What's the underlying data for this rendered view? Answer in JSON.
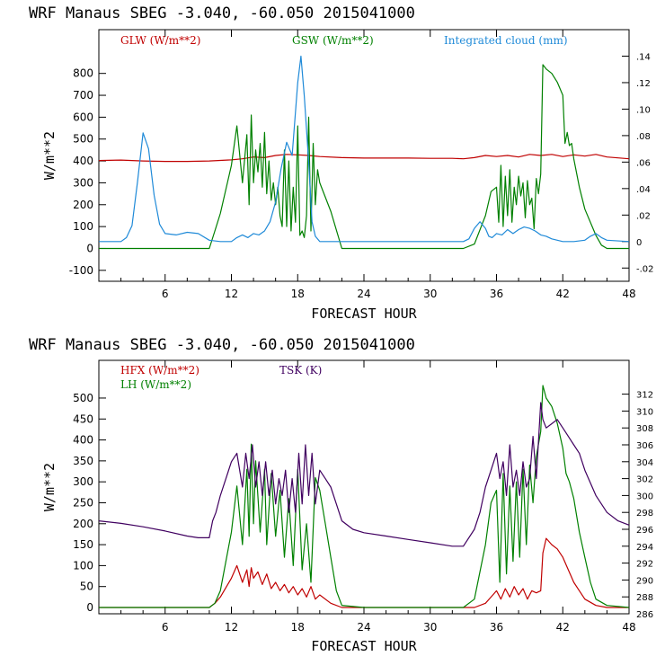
{
  "chart_data": [
    {
      "type": "line",
      "title": "WRF   Manaus SBEG    -3.040, -60.050  2015041000",
      "xlabel": "FORECAST HOUR",
      "ylabel": "W/m**2",
      "xlim": [
        0,
        48
      ],
      "ylim": [
        -150,
        1000
      ],
      "y2lim": [
        -0.03,
        0.16
      ],
      "x_ticks": [
        6,
        12,
        18,
        24,
        30,
        36,
        42,
        48
      ],
      "y_ticks": [
        -100,
        0,
        100,
        200,
        300,
        400,
        500,
        600,
        700,
        800
      ],
      "y2_ticks": [
        -0.02,
        0,
        0.02,
        0.04,
        0.06,
        0.08,
        0.1,
        0.12,
        0.14
      ],
      "y2_tick_labels": [
        "-.02",
        "0",
        ".02",
        ".04",
        ".06",
        ".08",
        ".10",
        ".12",
        ".14"
      ],
      "legend": [
        {
          "label": "GLW (W/m**2)",
          "color": "#c00000"
        },
        {
          "label": "GSW (W/m**2)",
          "color": "#008000"
        },
        {
          "label": "Integrated cloud (mm)",
          "color": "#1f8ad8"
        }
      ],
      "series": [
        {
          "name": "GLW",
          "color": "#c00000",
          "axis": "left",
          "x": [
            0,
            2,
            4,
            6,
            8,
            10,
            12,
            13,
            14,
            15,
            16,
            17,
            18,
            19,
            20,
            22,
            24,
            26,
            28,
            30,
            32,
            33,
            34,
            35,
            36,
            37,
            38,
            39,
            40,
            41,
            42,
            43,
            44,
            45,
            46,
            48
          ],
          "y": [
            402,
            404,
            400,
            398,
            398,
            400,
            405,
            410,
            418,
            415,
            425,
            430,
            428,
            425,
            420,
            415,
            413,
            413,
            413,
            412,
            412,
            410,
            415,
            425,
            420,
            425,
            418,
            430,
            425,
            430,
            420,
            428,
            422,
            430,
            418,
            410
          ]
        },
        {
          "name": "GSW",
          "color": "#008000",
          "axis": "left",
          "x": [
            0,
            6,
            10,
            10.5,
            11,
            12,
            12.5,
            13,
            13.4,
            13.6,
            13.8,
            14,
            14.2,
            14.4,
            14.6,
            14.8,
            15,
            15.2,
            15.4,
            15.6,
            15.8,
            16,
            16.2,
            16.4,
            16.6,
            16.8,
            17,
            17.2,
            17.4,
            17.6,
            17.8,
            18,
            18.2,
            18.4,
            18.6,
            18.8,
            19,
            19.2,
            19.4,
            19.6,
            19.8,
            20,
            21,
            22,
            24,
            33,
            34,
            35,
            35.5,
            36,
            36.2,
            36.4,
            36.6,
            36.8,
            37,
            37.2,
            37.4,
            37.6,
            37.8,
            38,
            38.2,
            38.4,
            38.6,
            38.8,
            39,
            39.2,
            39.4,
            39.6,
            39.8,
            40,
            40.2,
            40.5,
            41,
            41.5,
            42,
            42.2,
            42.4,
            42.6,
            42.8,
            43,
            43.5,
            44,
            45,
            45.5,
            46,
            48
          ],
          "y": [
            0,
            0,
            0,
            80,
            160,
            380,
            560,
            300,
            520,
            200,
            610,
            300,
            450,
            350,
            480,
            280,
            530,
            250,
            400,
            220,
            300,
            200,
            280,
            150,
            100,
            450,
            100,
            400,
            80,
            280,
            120,
            560,
            60,
            80,
            50,
            150,
            600,
            80,
            480,
            200,
            360,
            300,
            170,
            0,
            0,
            0,
            20,
            150,
            260,
            280,
            120,
            380,
            100,
            330,
            150,
            360,
            120,
            280,
            200,
            330,
            240,
            300,
            140,
            310,
            200,
            230,
            90,
            320,
            250,
            340,
            840,
            820,
            800,
            760,
            700,
            480,
            530,
            470,
            480,
            410,
            280,
            180,
            60,
            15,
            0,
            0
          ]
        },
        {
          "name": "Integrated cloud",
          "color": "#1f8ad8",
          "axis": "right",
          "x": [
            0,
            1,
            2,
            2.5,
            3,
            3.5,
            4,
            4.5,
            5,
            5.5,
            6,
            7,
            8,
            9,
            10,
            11,
            12,
            12.5,
            13,
            13.5,
            14,
            14.5,
            15,
            15.5,
            16,
            16.5,
            17,
            17.5,
            18,
            18.3,
            18.6,
            19,
            19.3,
            19.6,
            20,
            22,
            24,
            30,
            33,
            33.5,
            34,
            34.5,
            35,
            35.3,
            35.6,
            36,
            36.5,
            37,
            37.5,
            38,
            38.5,
            39,
            39.5,
            40,
            40.5,
            41,
            42,
            43,
            44,
            44.5,
            45,
            45.5,
            46,
            48
          ],
          "y": [
            0,
            0,
            0,
            0.003,
            0.012,
            0.045,
            0.082,
            0.07,
            0.035,
            0.013,
            0.006,
            0.005,
            0.007,
            0.006,
            0.001,
            0,
            0,
            0.003,
            0.005,
            0.003,
            0.006,
            0.005,
            0.008,
            0.015,
            0.03,
            0.055,
            0.075,
            0.065,
            0.12,
            0.14,
            0.11,
            0.06,
            0.015,
            0.004,
            0,
            0,
            0,
            0,
            0,
            0.002,
            0.01,
            0.015,
            0.01,
            0.004,
            0.003,
            0.006,
            0.005,
            0.009,
            0.006,
            0.009,
            0.011,
            0.01,
            0.008,
            0.005,
            0.004,
            0.002,
            0,
            0,
            0.001,
            0.004,
            0.006,
            0.003,
            0.001,
            0
          ]
        }
      ]
    },
    {
      "type": "line",
      "title": "WRF   Manaus SBEG    -3.040, -60.050  2015041000",
      "xlabel": "FORECAST HOUR",
      "ylabel": "W/m**2",
      "xlim": [
        0,
        48
      ],
      "ylim": [
        -15,
        590
      ],
      "y2lim": [
        286,
        316
      ],
      "x_ticks": [
        6,
        12,
        18,
        24,
        30,
        36,
        42,
        48
      ],
      "y_ticks": [
        0,
        50,
        100,
        150,
        200,
        250,
        300,
        350,
        400,
        450,
        500
      ],
      "y2_ticks": [
        286,
        288,
        290,
        292,
        294,
        296,
        298,
        300,
        302,
        304,
        306,
        308,
        310,
        312
      ],
      "legend": [
        {
          "label": "HFX (W/m**2)",
          "color": "#c00000"
        },
        {
          "label": "LH  (W/m**2)",
          "color": "#008000"
        },
        {
          "label": "TSK (K)",
          "color": "#400060"
        }
      ],
      "series": [
        {
          "name": "HFX",
          "color": "#c00000",
          "axis": "left",
          "x": [
            0,
            8,
            10,
            10.5,
            11,
            12,
            12.5,
            13,
            13.4,
            13.6,
            13.8,
            14,
            14.4,
            14.8,
            15.2,
            15.6,
            16,
            16.4,
            16.8,
            17.2,
            17.6,
            18,
            18.4,
            18.8,
            19.2,
            19.6,
            20,
            21,
            22,
            24,
            33,
            34,
            35,
            35.5,
            36,
            36.4,
            36.8,
            37.2,
            37.6,
            38,
            38.4,
            38.8,
            39.2,
            39.6,
            40,
            40.2,
            40.5,
            41,
            41.5,
            42,
            42.5,
            43,
            43.5,
            44,
            45,
            46,
            48
          ],
          "y": [
            0,
            0,
            0,
            10,
            25,
            70,
            100,
            60,
            90,
            50,
            95,
            70,
            85,
            55,
            80,
            45,
            60,
            40,
            55,
            35,
            50,
            30,
            45,
            25,
            50,
            20,
            30,
            10,
            0,
            0,
            0,
            0,
            10,
            25,
            40,
            20,
            45,
            25,
            50,
            30,
            45,
            20,
            40,
            35,
            40,
            130,
            165,
            150,
            140,
            120,
            90,
            60,
            40,
            20,
            5,
            0,
            0
          ]
        },
        {
          "name": "LH",
          "color": "#008000",
          "axis": "left",
          "x": [
            0,
            9,
            10,
            10.5,
            11,
            12,
            12.5,
            13,
            13.4,
            13.6,
            13.8,
            14,
            14.2,
            14.6,
            15,
            15.2,
            15.6,
            16,
            16.4,
            16.8,
            17.2,
            17.6,
            18,
            18.4,
            18.8,
            19.2,
            19.6,
            20,
            20.5,
            21,
            21.5,
            22,
            24,
            33,
            34,
            35,
            35.5,
            36,
            36.3,
            36.6,
            36.9,
            37.2,
            37.5,
            37.8,
            38.1,
            38.4,
            38.7,
            39,
            39.3,
            39.6,
            40,
            40.2,
            40.5,
            41,
            41.5,
            42,
            42.3,
            42.6,
            43,
            43.5,
            44,
            44.5,
            45,
            46,
            48
          ],
          "y": [
            0,
            0,
            0,
            10,
            40,
            180,
            290,
            150,
            330,
            170,
            390,
            200,
            350,
            180,
            330,
            150,
            320,
            170,
            280,
            120,
            260,
            100,
            330,
            90,
            200,
            60,
            310,
            280,
            200,
            120,
            40,
            5,
            0,
            0,
            20,
            150,
            250,
            280,
            60,
            320,
            80,
            290,
            110,
            300,
            120,
            330,
            150,
            340,
            250,
            360,
            420,
            530,
            500,
            480,
            440,
            380,
            320,
            300,
            260,
            180,
            120,
            60,
            20,
            5,
            0
          ]
        },
        {
          "name": "TSK",
          "color": "#400060",
          "axis": "right",
          "x": [
            0,
            2,
            4,
            6,
            8,
            9,
            10,
            10.3,
            10.6,
            11,
            11.5,
            12,
            12.5,
            13,
            13.3,
            13.6,
            13.9,
            14.2,
            14.5,
            14.8,
            15.1,
            15.4,
            15.7,
            16,
            16.3,
            16.6,
            16.9,
            17.2,
            17.5,
            17.8,
            18.1,
            18.4,
            18.7,
            19,
            19.3,
            19.6,
            20,
            20.5,
            21,
            21.5,
            22,
            23,
            24,
            26,
            28,
            30,
            32,
            33,
            34,
            34.5,
            35,
            35.5,
            36,
            36.3,
            36.6,
            36.9,
            37.2,
            37.5,
            37.8,
            38.1,
            38.4,
            38.7,
            39,
            39.3,
            39.6,
            40,
            40.2,
            40.5,
            41,
            41.5,
            42,
            42.5,
            43,
            43.5,
            44,
            45,
            46,
            47,
            48
          ],
          "y": [
            297,
            296.7,
            296.3,
            295.8,
            295.2,
            295,
            295,
            297,
            298,
            300,
            302,
            304,
            305,
            301,
            305,
            302,
            306,
            301,
            304,
            300,
            304,
            300,
            303,
            299,
            302,
            300,
            303,
            298,
            302,
            298,
            305,
            299,
            306,
            300,
            305,
            299,
            303,
            302,
            301,
            299,
            297,
            296,
            295.6,
            295.2,
            294.8,
            294.4,
            294,
            294,
            296,
            298,
            301,
            303,
            305,
            302,
            304,
            300,
            306,
            301,
            303,
            300,
            304,
            301,
            302,
            307,
            302,
            311,
            309,
            308,
            308.5,
            309,
            308,
            307,
            306,
            305,
            303,
            300,
            298,
            297,
            296.5
          ]
        }
      ]
    }
  ]
}
